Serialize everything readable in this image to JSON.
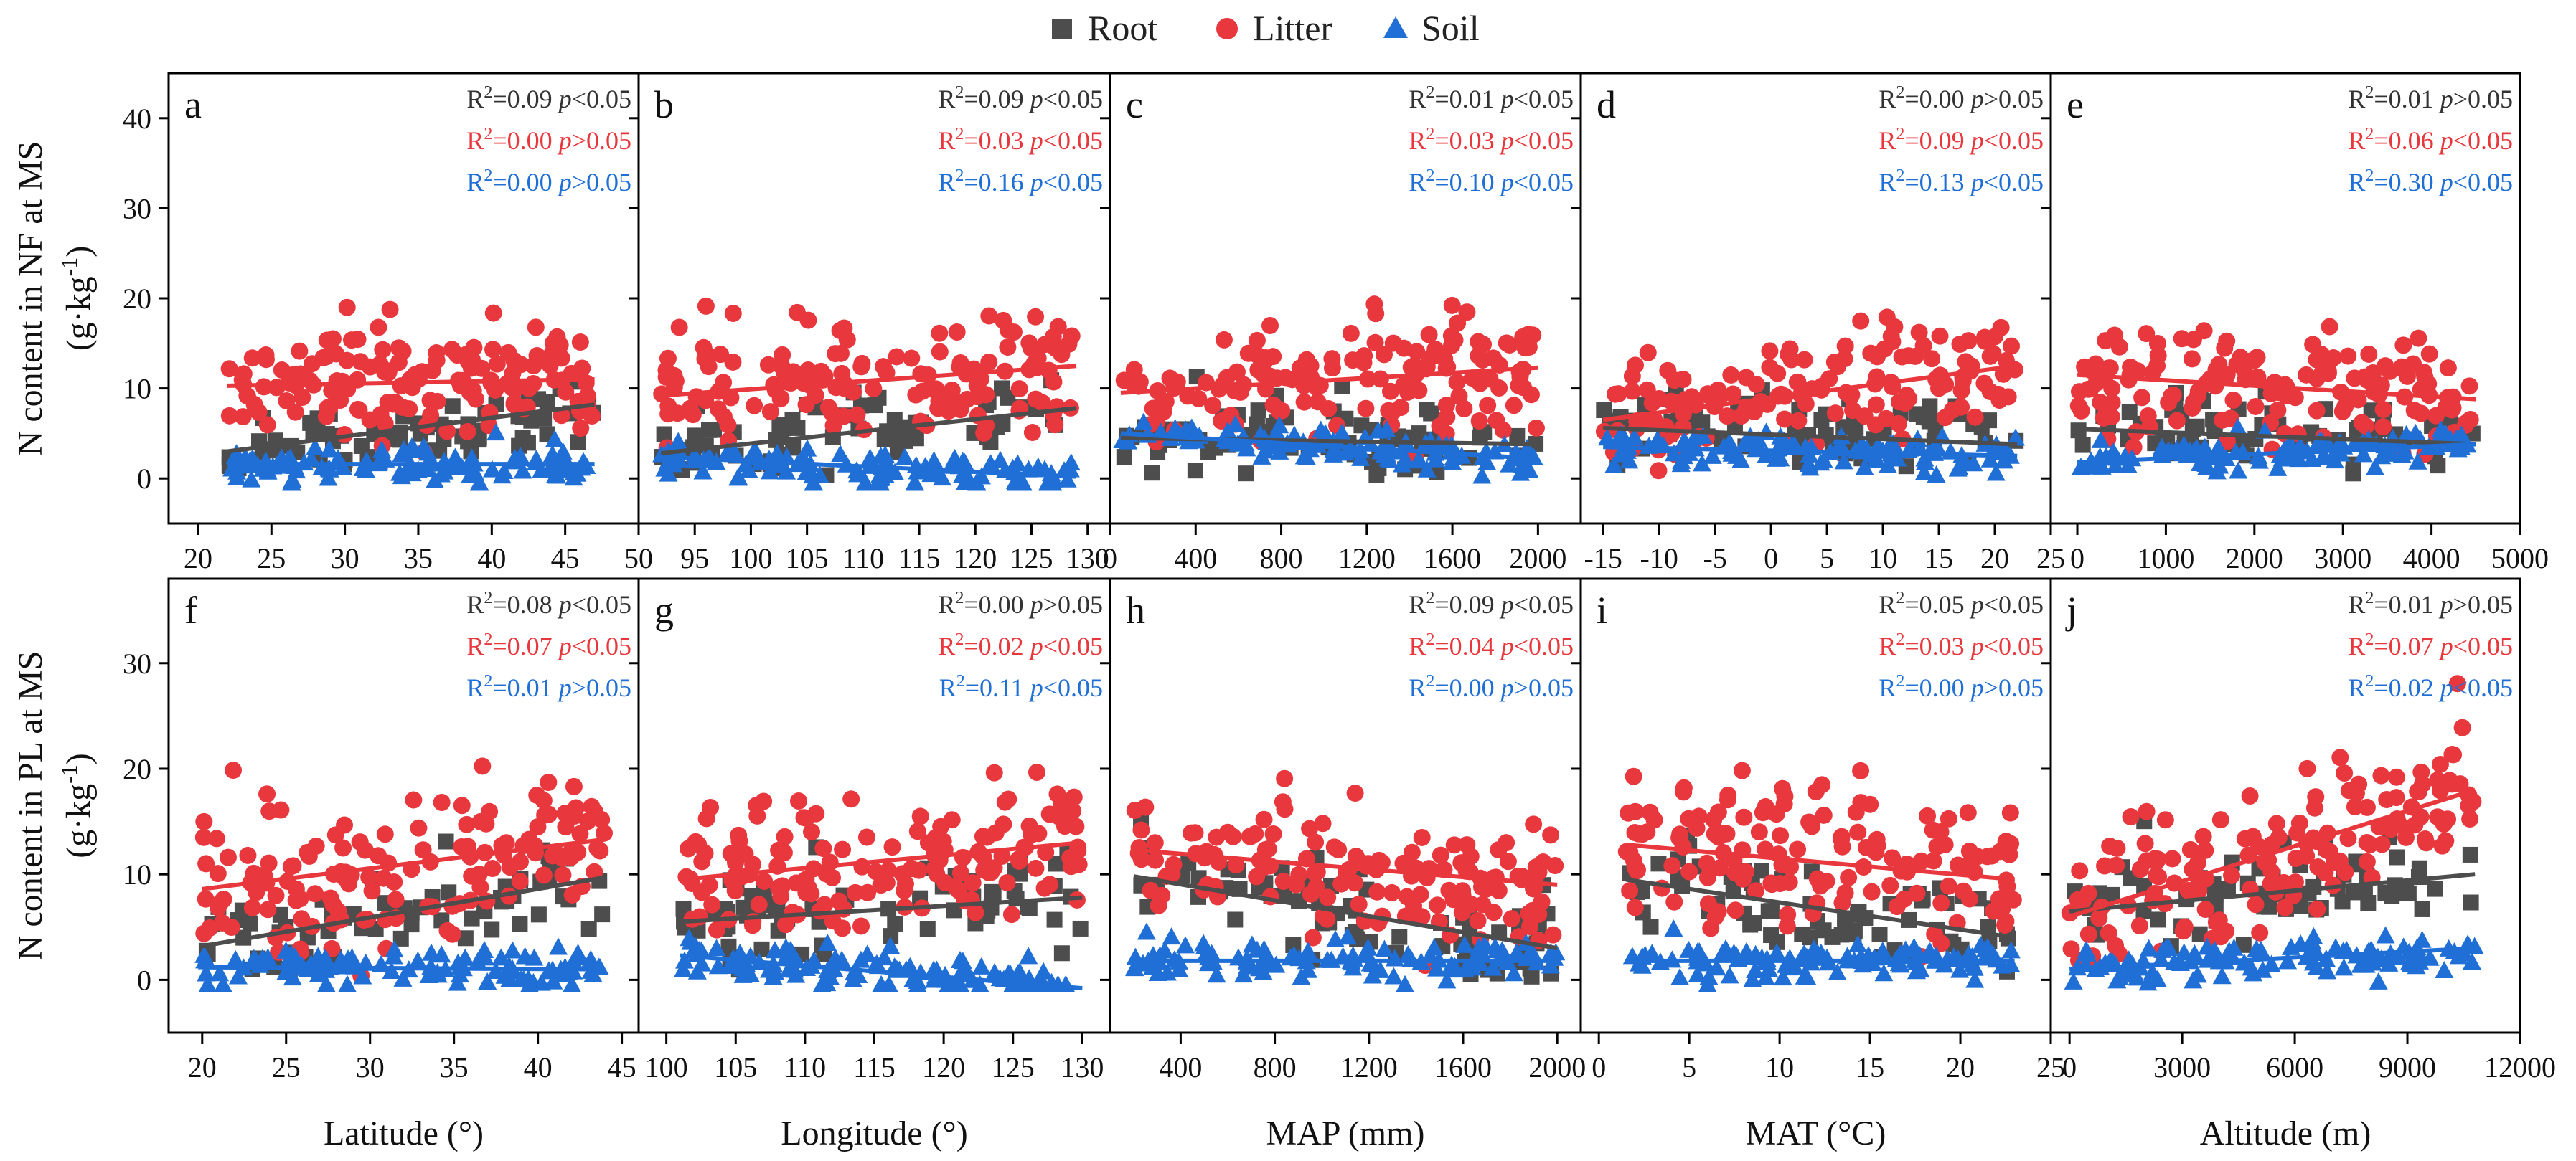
{
  "figure": {
    "legend": [
      {
        "name": "Root",
        "color": "#4d4d4d",
        "marker": "square"
      },
      {
        "name": "Litter",
        "color": "#e8383d",
        "marker": "circle"
      },
      {
        "name": "Soil",
        "color": "#1f6fd6",
        "marker": "triangle"
      }
    ],
    "xlabels": [
      "Latitude (°)",
      "Longitude (°)",
      "MAP (mm)",
      "MAT (°C)",
      "Altitude (m)"
    ],
    "rows": [
      {
        "ylabel_line1": "N content in NF at MS",
        "ylabel_line2_prefix": "(g·kg",
        "ylabel_line2_sup": "-1",
        "ylabel_line2_suffix": ")"
      },
      {
        "ylabel_line1": "N content in PL at MS",
        "ylabel_line2_prefix": "(g·kg",
        "ylabel_line2_sup": "-1",
        "ylabel_line2_suffix": ")"
      }
    ]
  },
  "chart_data": [
    {
      "panel": "a",
      "type": "scatter",
      "xlabel": "Latitude (°)",
      "xlim": [
        18,
        50
      ],
      "ylim": [
        -5,
        45
      ],
      "xticks": [
        "20",
        "25",
        "30",
        "35",
        "40",
        "45",
        "50"
      ],
      "yticks": [
        "0",
        "10",
        "20",
        "30",
        "40"
      ],
      "stats": [
        {
          "series": "Root",
          "r2": "0.09",
          "p": "<0.05"
        },
        {
          "series": "Litter",
          "r2": "0.00",
          "p": ">0.05"
        },
        {
          "series": "Soil",
          "r2": "0.00",
          "p": ">0.05"
        }
      ],
      "fits": {
        "Root": [
          [
            22,
            3.0
          ],
          [
            47,
            8.2
          ]
        ],
        "Litter": [
          [
            22,
            10.3
          ],
          [
            47,
            11.0
          ]
        ],
        "Soil": [
          [
            22,
            1.6
          ],
          [
            47,
            1.6
          ]
        ]
      }
    },
    {
      "panel": "b",
      "type": "scatter",
      "xlabel": "Longitude (°)",
      "xlim": [
        90,
        132
      ],
      "ylim": [
        -5,
        45
      ],
      "xticks": [
        "95",
        "100",
        "105",
        "110",
        "115",
        "120",
        "125",
        "130"
      ],
      "yticks": [],
      "stats": [
        {
          "series": "Root",
          "r2": "0.09",
          "p": "<0.05"
        },
        {
          "series": "Litter",
          "r2": "0.03",
          "p": "<0.05"
        },
        {
          "series": "Soil",
          "r2": "0.16",
          "p": "<0.05"
        }
      ],
      "fits": {
        "Root": [
          [
            92,
            2.8
          ],
          [
            129,
            7.8
          ]
        ],
        "Litter": [
          [
            92,
            9.2
          ],
          [
            129,
            12.5
          ]
        ],
        "Soil": [
          [
            92,
            2.4
          ],
          [
            129,
            0.2
          ]
        ]
      }
    },
    {
      "panel": "c",
      "type": "scatter",
      "xlabel": "MAP (mm)",
      "xlim": [
        0,
        2200
      ],
      "ylim": [
        -5,
        45
      ],
      "xticks": [
        "0",
        "400",
        "800",
        "1200",
        "1600",
        "2000"
      ],
      "yticks": [],
      "stats": [
        {
          "series": "Root",
          "r2": "0.01",
          "p": "<0.05"
        },
        {
          "series": "Litter",
          "r2": "0.03",
          "p": "<0.05"
        },
        {
          "series": "Soil",
          "r2": "0.10",
          "p": "<0.05"
        }
      ],
      "fits": {
        "Root": [
          [
            50,
            4.5
          ],
          [
            2000,
            3.8
          ]
        ],
        "Litter": [
          [
            50,
            9.5
          ],
          [
            2000,
            12.3
          ]
        ],
        "Soil": [
          [
            50,
            5.0
          ],
          [
            2000,
            2.2
          ]
        ]
      }
    },
    {
      "panel": "d",
      "type": "scatter",
      "xlabel": "MAT (°C)",
      "xlim": [
        -17,
        25
      ],
      "ylim": [
        -5,
        45
      ],
      "xticks": [
        "-15",
        "-10",
        "-5",
        "0",
        "5",
        "10",
        "15",
        "20",
        "25"
      ],
      "yticks": [],
      "stats": [
        {
          "series": "Root",
          "r2": "0.00",
          "p": ">0.05"
        },
        {
          "series": "Litter",
          "r2": "0.09",
          "p": "<0.05"
        },
        {
          "series": "Soil",
          "r2": "0.13",
          "p": "<0.05"
        }
      ],
      "fits": {
        "Root": [
          [
            -15,
            5.6
          ],
          [
            22,
            3.8
          ]
        ],
        "Litter": [
          [
            -15,
            6.5
          ],
          [
            22,
            12.5
          ]
        ],
        "Soil": [
          [
            -15,
            3.5
          ],
          [
            22,
            2.5
          ]
        ]
      }
    },
    {
      "panel": "e",
      "type": "scatter",
      "xlabel": "Altitude (m)",
      "xlim": [
        -300,
        5000
      ],
      "ylim": [
        -5,
        45
      ],
      "xticks": [
        "0",
        "1000",
        "2000",
        "3000",
        "4000",
        "5000"
      ],
      "yticks": [],
      "stats": [
        {
          "series": "Root",
          "r2": "0.01",
          "p": ">0.05"
        },
        {
          "series": "Litter",
          "r2": "0.06",
          "p": "<0.05"
        },
        {
          "series": "Soil",
          "r2": "0.30",
          "p": "<0.05"
        }
      ],
      "fits": {
        "Root": [
          [
            0,
            5.5
          ],
          [
            4500,
            3.8
          ]
        ],
        "Litter": [
          [
            0,
            11.5
          ],
          [
            4500,
            8.8
          ]
        ],
        "Soil": [
          [
            0,
            1.8
          ],
          [
            4500,
            3.8
          ]
        ]
      }
    },
    {
      "panel": "f",
      "type": "scatter",
      "xlabel": "Latitude (°)",
      "xlim": [
        18,
        46
      ],
      "ylim": [
        -5,
        38
      ],
      "xticks": [
        "20",
        "25",
        "30",
        "35",
        "40",
        "45"
      ],
      "yticks": [
        "0",
        "10",
        "20",
        "30"
      ],
      "stats": [
        {
          "series": "Root",
          "r2": "0.08",
          "p": "<0.05"
        },
        {
          "series": "Litter",
          "r2": "0.07",
          "p": "<0.05"
        },
        {
          "series": "Soil",
          "r2": "0.01",
          "p": ">0.05"
        }
      ],
      "fits": {
        "Root": [
          [
            20,
            3.2
          ],
          [
            44,
            9.7
          ]
        ],
        "Litter": [
          [
            20,
            8.6
          ],
          [
            44,
            13.3
          ]
        ],
        "Soil": [
          [
            20,
            1.2
          ],
          [
            44,
            1.0
          ]
        ]
      }
    },
    {
      "panel": "g",
      "type": "scatter",
      "xlabel": "Longitude (°)",
      "xlim": [
        98,
        132
      ],
      "ylim": [
        -5,
        38
      ],
      "xticks": [
        "100",
        "105",
        "110",
        "115",
        "120",
        "125",
        "130"
      ],
      "yticks": [],
      "stats": [
        {
          "series": "Root",
          "r2": "0.00",
          "p": ">0.05"
        },
        {
          "series": "Litter",
          "r2": "0.02",
          "p": "<0.05"
        },
        {
          "series": "Soil",
          "r2": "0.11",
          "p": "<0.05"
        }
      ],
      "fits": {
        "Root": [
          [
            101,
            5.5
          ],
          [
            130,
            7.8
          ]
        ],
        "Litter": [
          [
            101,
            9.5
          ],
          [
            130,
            13.0
          ]
        ],
        "Soil": [
          [
            101,
            2.3
          ],
          [
            130,
            -0.8
          ]
        ]
      }
    },
    {
      "panel": "h",
      "type": "scatter",
      "xlabel": "MAP (mm)",
      "xlim": [
        100,
        2100
      ],
      "ylim": [
        -5,
        38
      ],
      "xticks": [
        "400",
        "800",
        "1200",
        "1600",
        "2000"
      ],
      "yticks": [],
      "stats": [
        {
          "series": "Root",
          "r2": "0.09",
          "p": "<0.05"
        },
        {
          "series": "Litter",
          "r2": "0.04",
          "p": "<0.05"
        },
        {
          "series": "Soil",
          "r2": "0.00",
          "p": ">0.05"
        }
      ],
      "fits": {
        "Root": [
          [
            200,
            9.8
          ],
          [
            2000,
            3.0
          ]
        ],
        "Litter": [
          [
            200,
            12.3
          ],
          [
            2000,
            9.0
          ]
        ],
        "Soil": [
          [
            200,
            1.8
          ],
          [
            2000,
            1.8
          ]
        ]
      }
    },
    {
      "panel": "i",
      "type": "scatter",
      "xlabel": "MAT (°C)",
      "xlim": [
        -1,
        25
      ],
      "ylim": [
        -5,
        38
      ],
      "xticks": [
        "0",
        "5",
        "10",
        "15",
        "20",
        "25"
      ],
      "yticks": [],
      "stats": [
        {
          "series": "Root",
          "r2": "0.05",
          "p": "<0.05"
        },
        {
          "series": "Litter",
          "r2": "0.03",
          "p": "<0.05"
        },
        {
          "series": "Soil",
          "r2": "0.00",
          "p": ">0.05"
        }
      ],
      "fits": {
        "Root": [
          [
            1.5,
            9.5
          ],
          [
            23,
            4.0
          ]
        ],
        "Litter": [
          [
            1.5,
            12.8
          ],
          [
            23,
            9.5
          ]
        ],
        "Soil": [
          [
            1.5,
            1.8
          ],
          [
            23,
            1.8
          ]
        ]
      }
    },
    {
      "panel": "j",
      "type": "scatter",
      "xlabel": "Altitude (m)",
      "xlim": [
        -500,
        12000
      ],
      "ylim": [
        -5,
        38
      ],
      "xticks": [
        "0",
        "3000",
        "6000",
        "9000",
        "12000"
      ],
      "yticks": [],
      "stats": [
        {
          "series": "Root",
          "r2": "0.01",
          "p": ">0.05"
        },
        {
          "series": "Litter",
          "r2": "0.07",
          "p": "<0.05"
        },
        {
          "series": "Soil",
          "r2": "0.02",
          "p": "<0.05"
        }
      ],
      "fits": {
        "Root": [
          [
            0,
            6.5
          ],
          [
            10800,
            10.0
          ]
        ],
        "Litter": [
          [
            0,
            6.0
          ],
          [
            10800,
            18.0
          ]
        ],
        "Soil": [
          [
            0,
            1.0
          ],
          [
            10800,
            3.0
          ]
        ]
      }
    }
  ]
}
